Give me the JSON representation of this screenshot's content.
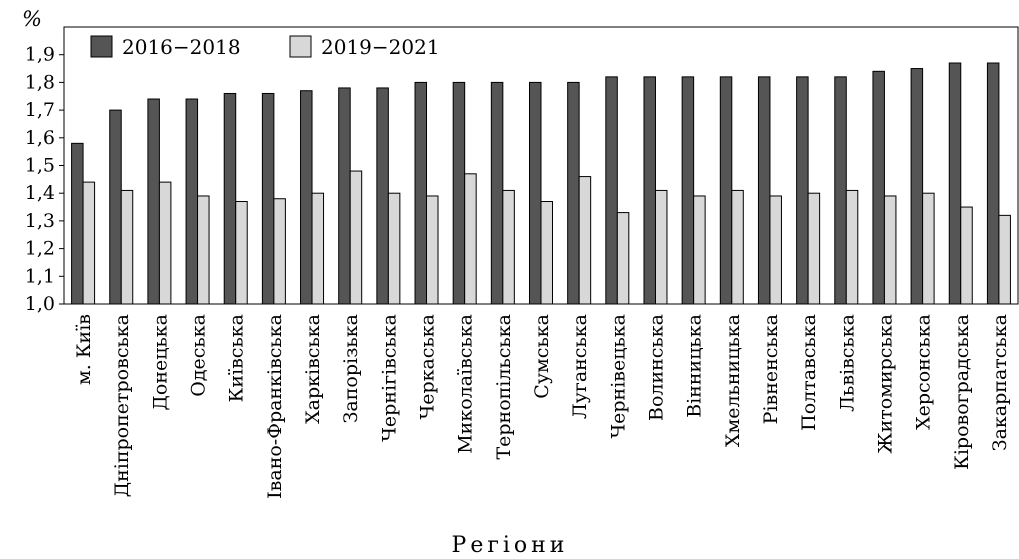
{
  "chart_data": {
    "type": "bar",
    "ylabel": "%",
    "xlabel": "Регіони",
    "ylim": [
      1.0,
      2.0
    ],
    "yticks": [
      "1,0",
      "1,1",
      "1,2",
      "1,3",
      "1,4",
      "1,5",
      "1,6",
      "1,7",
      "1,8",
      "1,9"
    ],
    "grid": false,
    "legend_position": "top-left",
    "categories": [
      "м. Київ",
      "Дніпропетровська",
      "Донецька",
      "Одеська",
      "Київська",
      "Івано-Франківська",
      "Харківська",
      "Запорізька",
      "Чернігівська",
      "Черкаська",
      "Миколаївська",
      "Тернопільська",
      "Сумська",
      "Луганська",
      "Чернівецька",
      "Волинська",
      "Вінницька",
      "Хмельницька",
      "Рівненська",
      "Полтавська",
      "Львівська",
      "Житомирська",
      "Херсонська",
      "Кіровоградська",
      "Закарпатська"
    ],
    "series": [
      {
        "name": "2016−2018",
        "color": "#555555",
        "values": [
          1.58,
          1.7,
          1.74,
          1.74,
          1.76,
          1.76,
          1.77,
          1.78,
          1.78,
          1.8,
          1.8,
          1.8,
          1.8,
          1.8,
          1.82,
          1.82,
          1.82,
          1.82,
          1.82,
          1.82,
          1.82,
          1.84,
          1.85,
          1.87,
          1.87
        ]
      },
      {
        "name": "2019−2021",
        "color": "#d8d8d8",
        "values": [
          1.44,
          1.41,
          1.44,
          1.39,
          1.37,
          1.38,
          1.4,
          1.48,
          1.4,
          1.39,
          1.47,
          1.41,
          1.37,
          1.46,
          1.33,
          1.41,
          1.39,
          1.41,
          1.39,
          1.4,
          1.41,
          1.39,
          1.4,
          1.35,
          1.32
        ]
      }
    ]
  }
}
